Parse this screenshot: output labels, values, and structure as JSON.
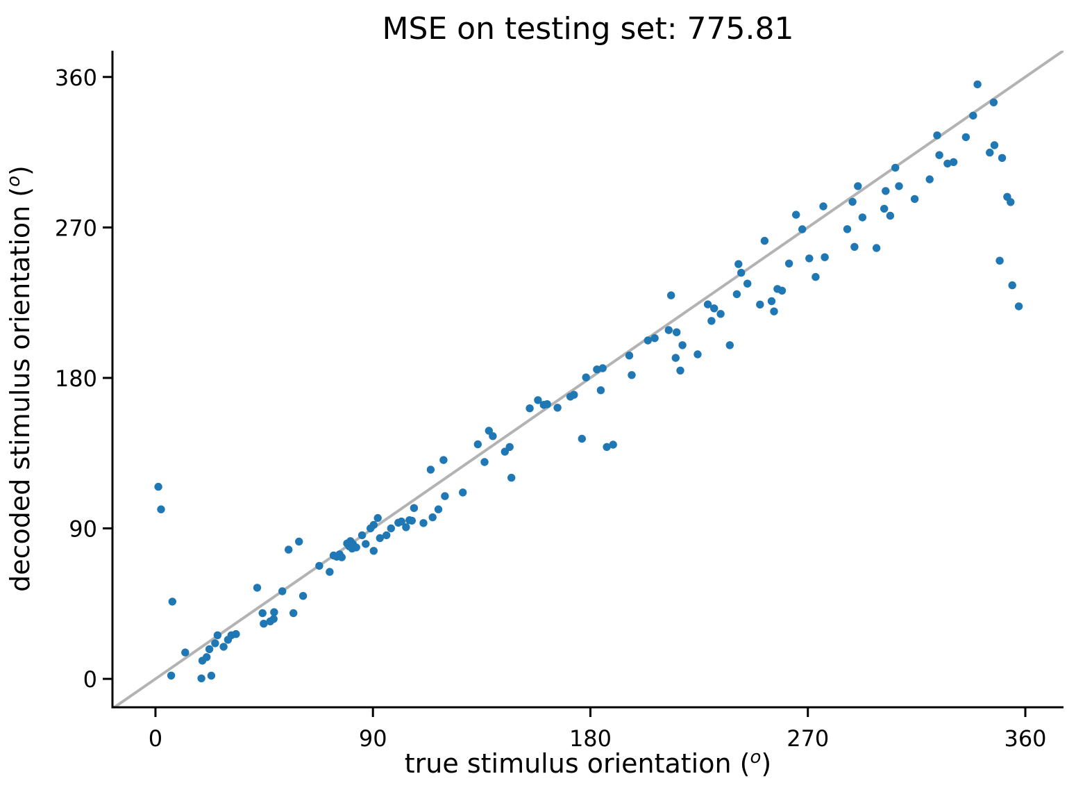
{
  "chart_data": {
    "type": "scatter",
    "title": "MSE on testing set: 775.81",
    "xlabel_parts": {
      "pre": "true stimulus orientation (",
      "sup": "o",
      "post": ")"
    },
    "ylabel_parts": {
      "pre": "decoded stimulus orientation (",
      "sup": "o",
      "post": ")"
    },
    "xlim": [
      -17.8,
      375.8
    ],
    "ylim": [
      -17.0,
      375.7
    ],
    "x_ticks": [
      0,
      90,
      180,
      270,
      360
    ],
    "y_ticks": [
      0,
      90,
      180,
      270,
      360
    ],
    "grid": false,
    "legend": "none",
    "identity_line": {
      "from": [
        -17.8,
        -17.8
      ],
      "to": [
        375.8,
        375.8
      ]
    },
    "colors": {
      "marker": "#1f77b4",
      "identity_line": "#b3b3b3",
      "axis": "#000000",
      "text": "#000000",
      "background": "#ffffff"
    },
    "points": [
      [
        1.2,
        114.9
      ],
      [
        2.3,
        101.4
      ],
      [
        6.5,
        2.0
      ],
      [
        7.0,
        46.2
      ],
      [
        12.3,
        15.8
      ],
      [
        19.0,
        0.3
      ],
      [
        23.1,
        1.9
      ],
      [
        19.4,
        10.9
      ],
      [
        21.2,
        13.0
      ],
      [
        22.3,
        17.8
      ],
      [
        24.7,
        21.3
      ],
      [
        25.7,
        26.1
      ],
      [
        28.2,
        19.2
      ],
      [
        30.0,
        23.4
      ],
      [
        31.4,
        26.1
      ],
      [
        33.3,
        26.8
      ],
      [
        42.1,
        54.5
      ],
      [
        44.3,
        39.3
      ],
      [
        44.8,
        33.0
      ],
      [
        47.5,
        34.4
      ],
      [
        48.9,
        35.8
      ],
      [
        49.1,
        39.9
      ],
      [
        52.5,
        52.4
      ],
      [
        55.1,
        77.3
      ],
      [
        57.1,
        39.3
      ],
      [
        59.4,
        82.1
      ],
      [
        61.1,
        49.6
      ],
      [
        67.8,
        67.6
      ],
      [
        72.1,
        64.0
      ],
      [
        73.7,
        73.8
      ],
      [
        75.0,
        73.1
      ],
      [
        76.2,
        74.5
      ],
      [
        77.1,
        72.7
      ],
      [
        79.3,
        81.0
      ],
      [
        80.2,
        79.3
      ],
      [
        80.7,
        82.4
      ],
      [
        81.4,
        77.9
      ],
      [
        81.7,
        80.7
      ],
      [
        83.1,
        78.6
      ],
      [
        85.5,
        85.9
      ],
      [
        87.0,
        80.7
      ],
      [
        89.0,
        90.0
      ],
      [
        90.3,
        76.6
      ],
      [
        90.3,
        92.1
      ],
      [
        92.0,
        96.2
      ],
      [
        92.9,
        84.2
      ],
      [
        95.6,
        85.9
      ],
      [
        97.5,
        90.0
      ],
      [
        100.5,
        93.4
      ],
      [
        101.8,
        94.1
      ],
      [
        103.7,
        90.7
      ],
      [
        105.1,
        94.9
      ],
      [
        106.1,
        94.6
      ],
      [
        107.0,
        102.2
      ],
      [
        110.9,
        93.2
      ],
      [
        114.7,
        96.6
      ],
      [
        113.9,
        125.1
      ],
      [
        117.1,
        101.4
      ],
      [
        119.8,
        109.3
      ],
      [
        119.2,
        130.9
      ],
      [
        127.2,
        111.5
      ],
      [
        133.4,
        140.3
      ],
      [
        136.2,
        129.7
      ],
      [
        138.0,
        148.4
      ],
      [
        139.6,
        145.2
      ],
      [
        144.6,
        135.9
      ],
      [
        146.6,
        138.7
      ],
      [
        147.3,
        120.3
      ],
      [
        154.9,
        161.8
      ],
      [
        158.3,
        166.7
      ],
      [
        160.7,
        163.9
      ],
      [
        162.1,
        164.3
      ],
      [
        166.4,
        162.2
      ],
      [
        171.7,
        168.8
      ],
      [
        173.2,
        169.9
      ],
      [
        176.5,
        143.6
      ],
      [
        178.2,
        180.3
      ],
      [
        182.7,
        185.1
      ],
      [
        184.3,
        172.6
      ],
      [
        185.1,
        185.8
      ],
      [
        186.8,
        138.7
      ],
      [
        189.4,
        140.1
      ],
      [
        196.1,
        193.4
      ],
      [
        197.1,
        181.7
      ],
      [
        203.8,
        202.4
      ],
      [
        206.6,
        203.8
      ],
      [
        212.4,
        208.6
      ],
      [
        213.4,
        229.4
      ],
      [
        215.7,
        207.3
      ],
      [
        215.3,
        192.0
      ],
      [
        217.2,
        184.4
      ],
      [
        218.1,
        199.6
      ],
      [
        224.4,
        194.1
      ],
      [
        228.6,
        224.0
      ],
      [
        230.1,
        214.1
      ],
      [
        231.2,
        221.6
      ],
      [
        233.9,
        218.3
      ],
      [
        237.7,
        199.6
      ],
      [
        240.6,
        230.1
      ],
      [
        241.3,
        248.1
      ],
      [
        242.4,
        242.9
      ],
      [
        245.0,
        236.4
      ],
      [
        250.2,
        223.9
      ],
      [
        252.1,
        262.0
      ],
      [
        255.0,
        225.9
      ],
      [
        256.0,
        219.8
      ],
      [
        257.4,
        233.2
      ],
      [
        259.3,
        232.2
      ],
      [
        262.2,
        248.4
      ],
      [
        265.1,
        277.6
      ],
      [
        267.7,
        268.9
      ],
      [
        270.6,
        251.5
      ],
      [
        273.2,
        240.4
      ],
      [
        277.0,
        252.2
      ],
      [
        276.4,
        282.6
      ],
      [
        286.3,
        269.0
      ],
      [
        288.5,
        285.3
      ],
      [
        289.3,
        258.4
      ],
      [
        290.7,
        294.7
      ],
      [
        292.6,
        276.0
      ],
      [
        298.4,
        257.7
      ],
      [
        301.6,
        281.2
      ],
      [
        302.2,
        291.8
      ],
      [
        304.1,
        277.0
      ],
      [
        306.2,
        305.7
      ],
      [
        307.7,
        294.7
      ],
      [
        314.2,
        287.0
      ],
      [
        320.4,
        298.8
      ],
      [
        323.5,
        325.1
      ],
      [
        324.4,
        313.3
      ],
      [
        327.8,
        308.2
      ],
      [
        330.3,
        309.1
      ],
      [
        335.4,
        324.0
      ],
      [
        338.4,
        336.9
      ],
      [
        340.2,
        355.6
      ],
      [
        345.3,
        314.8
      ],
      [
        346.9,
        344.8
      ],
      [
        347.2,
        319.2
      ],
      [
        350.4,
        311.6
      ],
      [
        352.5,
        288.3
      ],
      [
        353.9,
        285.2
      ],
      [
        349.4,
        250.1
      ],
      [
        354.6,
        235.4
      ],
      [
        357.3,
        222.8
      ]
    ]
  }
}
